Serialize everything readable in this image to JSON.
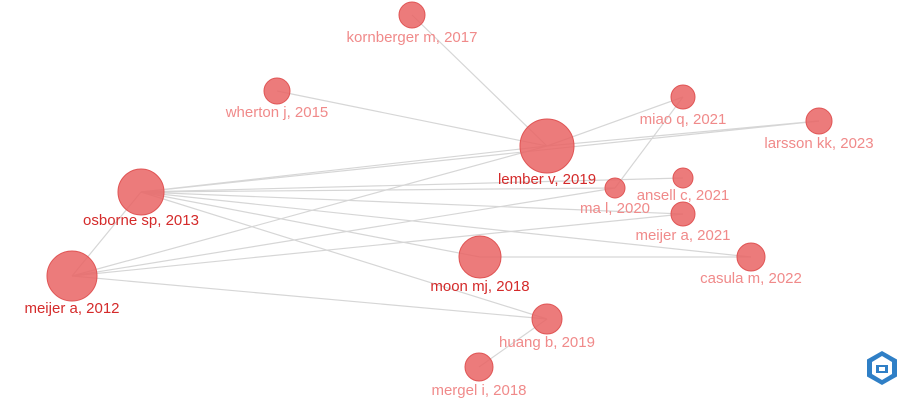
{
  "nodes": [
    {
      "label": "kornberger m, 2017"
    },
    {
      "label": "wherton j, 2015"
    },
    {
      "label": "miao q, 2021"
    },
    {
      "label": "larsson kk, 2023"
    },
    {
      "label": "lember v, 2019"
    },
    {
      "label": "ansell c, 2021"
    },
    {
      "label": "ma l, 2020"
    },
    {
      "label": "osborne sp, 2013"
    },
    {
      "label": "meijer a, 2021"
    },
    {
      "label": "moon mj, 2018"
    },
    {
      "label": "casula m, 2022"
    },
    {
      "label": "meijer a, 2012"
    },
    {
      "label": "huang b, 2019"
    },
    {
      "label": "mergel i, 2018"
    }
  ]
}
